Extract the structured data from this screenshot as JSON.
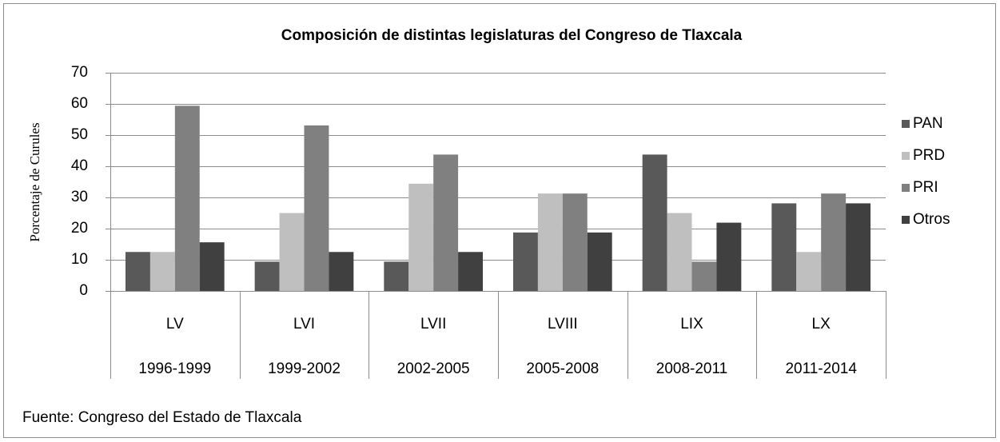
{
  "chart_data": {
    "type": "bar",
    "title": "Composición de distintas legislaturas del Congreso de Tlaxcala",
    "y_label": "Porcentaje de Curules",
    "source": "Fuente: Congreso del Estado de Tlaxcala",
    "categories": [
      "LV",
      "LVI",
      "LVII",
      "LVIII",
      "LIX",
      "LX"
    ],
    "periods": [
      "1996-1999",
      "1999-2002",
      "2002-2005",
      "2005-2008",
      "2008-2011",
      "2011-2014"
    ],
    "series": [
      {
        "name": "PAN",
        "color": "#595959",
        "values": [
          12.5,
          9.4,
          9.4,
          18.75,
          43.75,
          28.1
        ]
      },
      {
        "name": "PRD",
        "color": "#bfbfbf",
        "values": [
          12.5,
          25,
          34.4,
          31.25,
          25,
          12.5
        ]
      },
      {
        "name": "PRI",
        "color": "#808080",
        "values": [
          59.4,
          53.1,
          43.75,
          31.25,
          9.4,
          31.25
        ]
      },
      {
        "name": "Otros",
        "color": "#404040",
        "values": [
          15.6,
          12.5,
          12.5,
          18.75,
          21.9,
          28.1
        ]
      }
    ],
    "ylim": [
      0,
      70
    ],
    "yticks": [
      0,
      10,
      20,
      30,
      40,
      50,
      60,
      70
    ],
    "grid": true,
    "legend": "right"
  }
}
